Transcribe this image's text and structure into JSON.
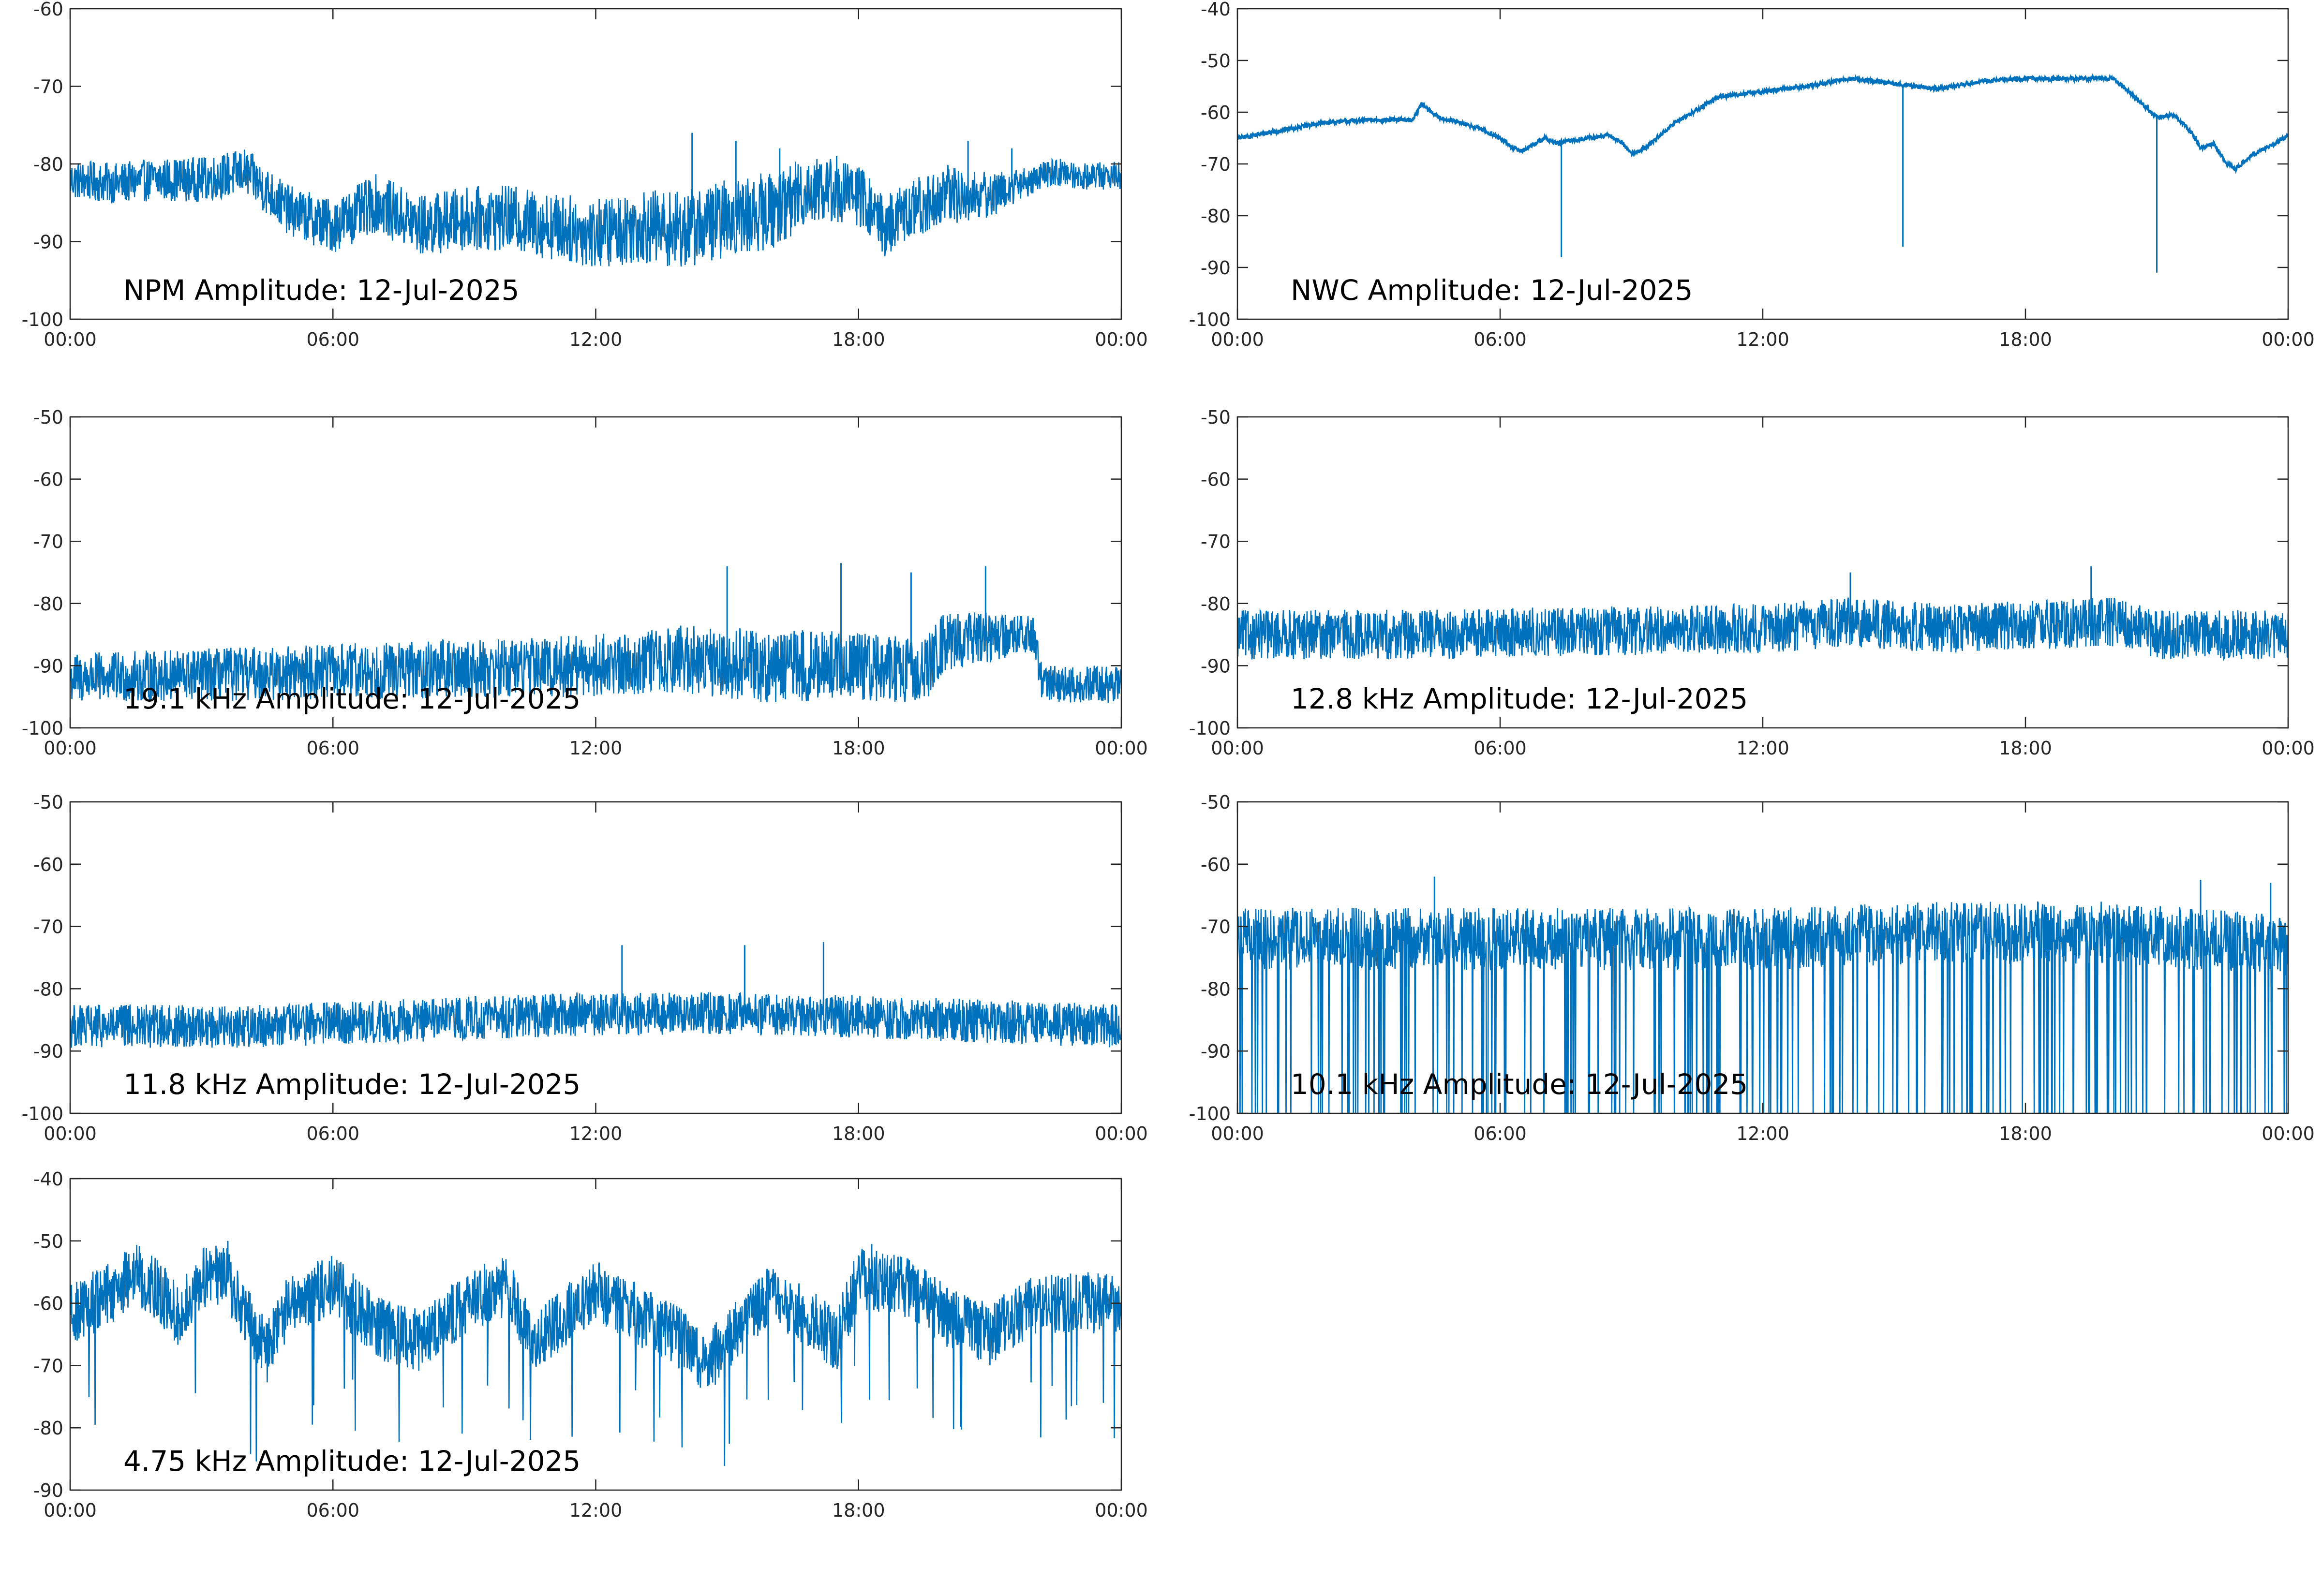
{
  "figure": {
    "date": "12-Jul-2025",
    "line_color": "#0072BD"
  },
  "chart_data": [
    {
      "id": "npm",
      "type": "line",
      "title": "NPM Amplitude: 12-Jul-2025",
      "xlim_hours": [
        0,
        24
      ],
      "x_ticks": [
        "00:00",
        "06:00",
        "12:00",
        "18:00",
        "00:00"
      ],
      "ylim": [
        -100,
        -60
      ],
      "y_ticks": [
        "-60",
        "-70",
        "-80",
        "-90",
        "-100"
      ],
      "trend": [
        [
          0,
          -82
        ],
        [
          1,
          -82.5
        ],
        [
          2,
          -82
        ],
        [
          3,
          -82
        ],
        [
          4,
          -81
        ],
        [
          5,
          -86
        ],
        [
          6,
          -88
        ],
        [
          7,
          -85
        ],
        [
          8,
          -88
        ],
        [
          9,
          -87
        ],
        [
          10,
          -87
        ],
        [
          11,
          -88
        ],
        [
          12,
          -89
        ],
        [
          13,
          -88
        ],
        [
          14,
          -88.5
        ],
        [
          15,
          -87
        ],
        [
          16,
          -86
        ],
        [
          17,
          -83
        ],
        [
          18,
          -84
        ],
        [
          18.6,
          -88
        ],
        [
          19.2,
          -86
        ],
        [
          20,
          -84
        ],
        [
          21,
          -84
        ],
        [
          22,
          -82
        ],
        [
          22.5,
          -81
        ],
        [
          23,
          -81.5
        ],
        [
          24,
          -81.5
        ]
      ],
      "noise": [
        [
          0,
          2.5
        ],
        [
          4,
          3
        ],
        [
          8,
          4
        ],
        [
          12,
          4.5
        ],
        [
          14,
          5
        ],
        [
          16,
          5
        ],
        [
          18,
          4
        ],
        [
          20,
          4
        ],
        [
          22,
          1.8
        ],
        [
          24,
          1.8
        ]
      ],
      "spikes": [
        [
          14.2,
          -76
        ],
        [
          15.2,
          -77
        ],
        [
          16.2,
          -78
        ],
        [
          17.5,
          -79
        ],
        [
          20.5,
          -77
        ],
        [
          21.5,
          -78
        ]
      ]
    },
    {
      "id": "nwc",
      "type": "line",
      "title": "NWC Amplitude: 12-Jul-2025",
      "xlim_hours": [
        0,
        24
      ],
      "x_ticks": [
        "00:00",
        "06:00",
        "12:00",
        "18:00",
        "00:00"
      ],
      "ylim": [
        -100,
        -40
      ],
      "y_ticks": [
        "-40",
        "-50",
        "-60",
        "-70",
        "-80",
        "-90",
        "-100"
      ],
      "trend": [
        [
          0,
          -65
        ],
        [
          1,
          -63.5
        ],
        [
          2,
          -62
        ],
        [
          3,
          -61.5
        ],
        [
          4,
          -61.5
        ],
        [
          4.2,
          -58.5
        ],
        [
          4.6,
          -61
        ],
        [
          5.5,
          -63
        ],
        [
          6,
          -65
        ],
        [
          6.3,
          -67
        ],
        [
          6.5,
          -67.5
        ],
        [
          6.8,
          -66
        ],
        [
          7,
          -65
        ],
        [
          7.3,
          -66
        ],
        [
          7.6,
          -65.5
        ],
        [
          8,
          -65
        ],
        [
          8.5,
          -64.5
        ],
        [
          8.8,
          -66
        ],
        [
          9,
          -68
        ],
        [
          9.3,
          -67
        ],
        [
          10,
          -62
        ],
        [
          11,
          -57
        ],
        [
          12,
          -56
        ],
        [
          13,
          -55
        ],
        [
          14,
          -53.5
        ],
        [
          15,
          -54.5
        ],
        [
          16,
          -55.5
        ],
        [
          17,
          -54
        ],
        [
          18,
          -53.5
        ],
        [
          19,
          -53.5
        ],
        [
          20,
          -53.5
        ],
        [
          20.5,
          -57
        ],
        [
          21,
          -61
        ],
        [
          21.4,
          -60.5
        ],
        [
          21.8,
          -64
        ],
        [
          22,
          -67
        ],
        [
          22.3,
          -66
        ],
        [
          22.6,
          -70
        ],
        [
          22.8,
          -71
        ],
        [
          23.2,
          -68
        ],
        [
          23.5,
          -67
        ],
        [
          24,
          -64.5
        ]
      ],
      "noise": [
        [
          0,
          0.4
        ],
        [
          24,
          0.4
        ]
      ],
      "spikes": [
        [
          7.4,
          -88
        ],
        [
          15.2,
          -86
        ],
        [
          21,
          -91
        ]
      ]
    },
    {
      "id": "khz191",
      "type": "line",
      "title": "19.1 kHz Amplitude: 12-Jul-2025",
      "xlim_hours": [
        0,
        24
      ],
      "x_ticks": [
        "00:00",
        "06:00",
        "12:00",
        "18:00",
        "00:00"
      ],
      "ylim": [
        -100,
        -50
      ],
      "y_ticks": [
        "-50",
        "-60",
        "-70",
        "-80",
        "-90",
        "-100"
      ],
      "trend": [
        [
          0,
          -92
        ],
        [
          6,
          -91
        ],
        [
          12,
          -90
        ],
        [
          14,
          -89
        ],
        [
          16,
          -90
        ],
        [
          18,
          -90
        ],
        [
          19.5,
          -91
        ],
        [
          20,
          -86
        ],
        [
          22,
          -85
        ],
        [
          22.2,
          -93
        ],
        [
          24,
          -93
        ]
      ],
      "noise": [
        [
          0,
          4
        ],
        [
          12,
          5
        ],
        [
          16,
          6
        ],
        [
          20,
          5
        ],
        [
          22,
          3
        ],
        [
          24,
          3
        ]
      ],
      "spikes": [
        [
          15,
          -74
        ],
        [
          17.6,
          -73.5
        ],
        [
          19.2,
          -75
        ],
        [
          20.9,
          -74
        ]
      ]
    },
    {
      "id": "khz128",
      "type": "line",
      "title": "12.8 kHz Amplitude: 12-Jul-2025",
      "xlim_hours": [
        0,
        24
      ],
      "x_ticks": [
        "00:00",
        "06:00",
        "12:00",
        "18:00",
        "00:00"
      ],
      "ylim": [
        -100,
        -50
      ],
      "y_ticks": [
        "-50",
        "-60",
        "-70",
        "-80",
        "-90",
        "-100"
      ],
      "trend": [
        [
          0,
          -85
        ],
        [
          4,
          -85
        ],
        [
          8,
          -84.5
        ],
        [
          12,
          -84
        ],
        [
          14,
          -83
        ],
        [
          16,
          -84
        ],
        [
          20,
          -83
        ],
        [
          21,
          -85
        ],
        [
          24,
          -85
        ]
      ],
      "noise": [
        [
          0,
          4
        ],
        [
          24,
          4
        ]
      ],
      "spikes": [
        [
          14,
          -75
        ],
        [
          19.5,
          -74
        ]
      ]
    },
    {
      "id": "khz118",
      "type": "line",
      "title": "11.8 kHz Amplitude: 12-Jul-2025",
      "xlim_hours": [
        0,
        24
      ],
      "x_ticks": [
        "00:00",
        "06:00",
        "12:00",
        "18:00",
        "00:00"
      ],
      "ylim": [
        -100,
        -50
      ],
      "y_ticks": [
        "-50",
        "-60",
        "-70",
        "-80",
        "-90",
        "-100"
      ],
      "trend": [
        [
          0,
          -86
        ],
        [
          4,
          -86
        ],
        [
          8,
          -85
        ],
        [
          12,
          -84
        ],
        [
          16,
          -84
        ],
        [
          20,
          -85
        ],
        [
          24,
          -86
        ]
      ],
      "noise": [
        [
          0,
          3.5
        ],
        [
          24,
          3.5
        ]
      ],
      "spikes": [
        [
          12.6,
          -73
        ],
        [
          15.4,
          -73
        ],
        [
          17.2,
          -72.5
        ]
      ]
    },
    {
      "id": "khz101",
      "type": "line",
      "title": "10.1 kHz Amplitude: 12-Jul-2025",
      "xlim_hours": [
        0,
        24
      ],
      "x_ticks": [
        "00:00",
        "06:00",
        "12:00",
        "18:00",
        "00:00"
      ],
      "ylim": [
        -100,
        -50
      ],
      "y_ticks": [
        "-50",
        "-60",
        "-70",
        "-80",
        "-90",
        "-100"
      ],
      "trend": [
        [
          0,
          -72
        ],
        [
          4,
          -72
        ],
        [
          8,
          -72
        ],
        [
          12,
          -72
        ],
        [
          16,
          -71
        ],
        [
          20,
          -71
        ],
        [
          24,
          -73
        ]
      ],
      "noise": [
        [
          0,
          5
        ],
        [
          24,
          5
        ]
      ],
      "spikes": [
        [
          4.5,
          -62
        ],
        [
          22,
          -62.5
        ],
        [
          23.6,
          -63
        ]
      ]
    },
    {
      "id": "khz475",
      "type": "line",
      "title": "4.75 kHz Amplitude: 12-Jul-2025",
      "xlim_hours": [
        0,
        24
      ],
      "x_ticks": [
        "00:00",
        "06:00",
        "12:00",
        "18:00",
        "00:00"
      ],
      "ylim": [
        -90,
        -40
      ],
      "y_ticks": [
        "-40",
        "-50",
        "-60",
        "-70",
        "-80",
        "-90"
      ],
      "trend": [
        [
          0,
          -62
        ],
        [
          1,
          -58
        ],
        [
          1.5,
          -55
        ],
        [
          2,
          -58
        ],
        [
          2.5,
          -62
        ],
        [
          3,
          -56
        ],
        [
          3.5,
          -55
        ],
        [
          4,
          -62
        ],
        [
          4.5,
          -68
        ],
        [
          5,
          -60
        ],
        [
          6,
          -57
        ],
        [
          7,
          -64
        ],
        [
          8,
          -66
        ],
        [
          9,
          -60
        ],
        [
          10,
          -57
        ],
        [
          10.5,
          -66
        ],
        [
          11,
          -64
        ],
        [
          12,
          -58
        ],
        [
          13,
          -62
        ],
        [
          14,
          -66
        ],
        [
          14.5,
          -70
        ],
        [
          15,
          -66
        ],
        [
          16,
          -58
        ],
        [
          17,
          -63
        ],
        [
          17.5,
          -66
        ],
        [
          18,
          -56
        ],
        [
          19,
          -57
        ],
        [
          20,
          -62
        ],
        [
          21,
          -65
        ],
        [
          22,
          -60
        ],
        [
          23,
          -60
        ],
        [
          24,
          -60
        ]
      ],
      "noise": [
        [
          0,
          5
        ],
        [
          24,
          5
        ]
      ],
      "spikes": [
        [
          3.6,
          -50
        ],
        [
          18.3,
          -50.5
        ]
      ]
    }
  ]
}
